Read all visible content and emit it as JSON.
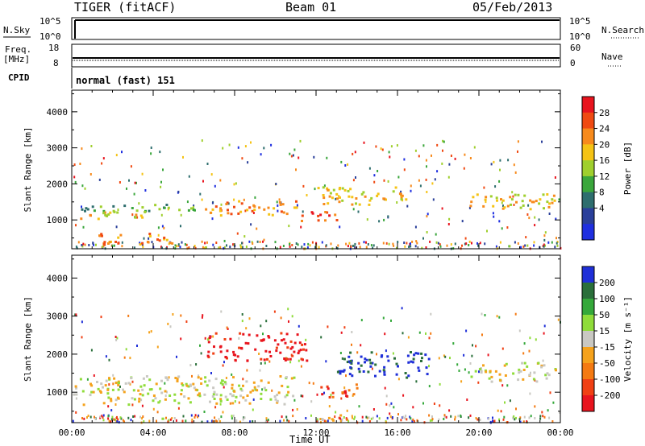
{
  "header": {
    "radar": "TIGER (fitACF)",
    "beam": "Beam 01",
    "date": "05/Feb/2013"
  },
  "top_panels": {
    "nsky_label": "N.Sky",
    "nsky_ticks": [
      "10^5",
      "10^0"
    ],
    "nsearch_label": "N.Search",
    "nsearch_ticks": [
      "10^5",
      "10^0"
    ],
    "freq_label": "Freq.",
    "freq_unit": "[MHz]",
    "freq_ticks": [
      "18",
      "8"
    ],
    "nave_label": "Nave",
    "nave_ticks": [
      "60",
      "0"
    ],
    "cpid_label": "CPID",
    "cpid_value": "normal (fast) 151"
  },
  "chart_data": [
    {
      "type": "heatmap",
      "name": "power",
      "ylabel": "Slant Range [km]",
      "yticks": [
        1000,
        2000,
        3000,
        4000
      ],
      "ylim": [
        200,
        4600
      ],
      "xlim": [
        0,
        24
      ],
      "colorbar": {
        "label": "Power [dB]",
        "ticks": [
          "28",
          "24",
          "20",
          "16",
          "12",
          "8",
          "4"
        ],
        "colors": [
          "#e8141e",
          "#f04a12",
          "#f78a1c",
          "#f5c315",
          "#9fcf2d",
          "#3aa63b",
          "#2e6e6e",
          "#2a3f9a",
          "#1f2fe0"
        ]
      },
      "bands": [
        {
          "t": [
            0,
            6.5
          ],
          "r": [
            1250,
            1450
          ],
          "level": 5
        },
        {
          "t": [
            0,
            3.5
          ],
          "r": [
            1050,
            1250
          ],
          "level": 3
        },
        {
          "t": [
            6.5,
            11
          ],
          "r": [
            1150,
            1550
          ],
          "level": 2
        },
        {
          "t": [
            11,
            13
          ],
          "r": [
            950,
            1250
          ],
          "level": 1
        },
        {
          "t": [
            12,
            16.5
          ],
          "r": [
            1450,
            1950
          ],
          "level": 3
        },
        {
          "t": [
            1,
            5
          ],
          "r": [
            350,
            650
          ],
          "level": 2
        },
        {
          "t": [
            19.5,
            23.8
          ],
          "r": [
            1300,
            1750
          ],
          "level": 3
        }
      ]
    },
    {
      "type": "heatmap",
      "name": "velocity",
      "ylabel": "Slant Range [km]",
      "xlabel": "Time UT",
      "xticks": [
        "00:00",
        "04:00",
        "08:00",
        "12:00",
        "16:00",
        "20:00",
        "00:00"
      ],
      "yticks": [
        1000,
        2000,
        3000,
        4000
      ],
      "ylim": [
        200,
        4600
      ],
      "xlim": [
        0,
        24
      ],
      "colorbar": {
        "label": "Velocity [m s⁻¹]",
        "ticks": [
          "200",
          "100",
          "50",
          "15",
          "-15",
          "-50",
          "-100",
          "-200"
        ],
        "colors": [
          "#1f2fd8",
          "#2a6f3a",
          "#34a83a",
          "#8fdc3a",
          "#c9c8c2",
          "#f5a21c",
          "#f47a12",
          "#f04014",
          "#e8141e"
        ]
      },
      "bands": [
        {
          "t": [
            0,
            11
          ],
          "r": [
            700,
            1450
          ],
          "level": 4
        },
        {
          "t": [
            6.5,
            11.5
          ],
          "r": [
            1850,
            2600
          ],
          "level": 8
        },
        {
          "t": [
            13,
            17.5
          ],
          "r": [
            1400,
            2100
          ],
          "level": 0
        },
        {
          "t": [
            12,
            14
          ],
          "r": [
            850,
            1250
          ],
          "level": 7
        },
        {
          "t": [
            19.5,
            23.8
          ],
          "r": [
            1300,
            1800
          ],
          "level": 4
        },
        {
          "t": [
            12,
            13.5
          ],
          "r": [
            250,
            500
          ],
          "level": 5
        }
      ]
    }
  ]
}
